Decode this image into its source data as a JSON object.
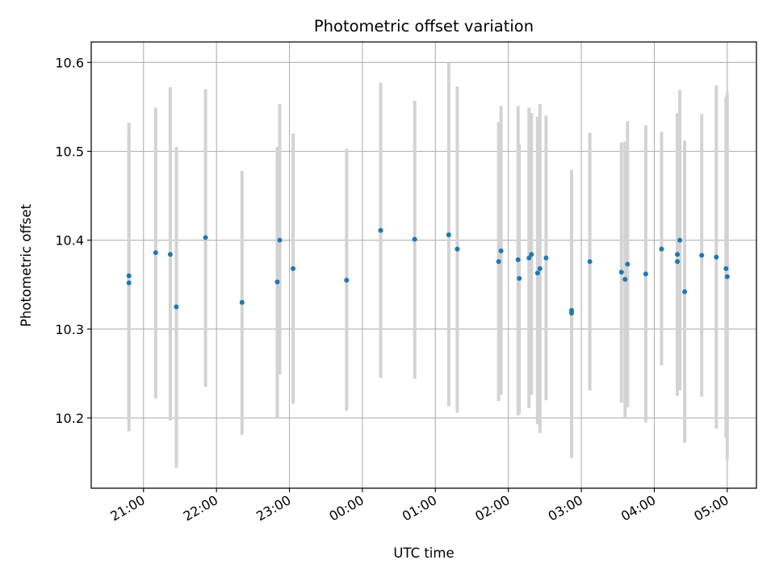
{
  "chart_data": {
    "type": "scatter",
    "title": "Photometric offset variation",
    "xlabel": "UTC time",
    "ylabel": "Photometric offset",
    "grid": true,
    "x_axis_type": "time",
    "xlim": [
      "20:17",
      "29:24"
    ],
    "ylim": [
      10.121,
      10.623
    ],
    "x_ticks": [
      "21:00",
      "22:00",
      "23:00",
      "00:00",
      "01:00",
      "02:00",
      "03:00",
      "04:00",
      "05:00"
    ],
    "y_ticks": [
      "10.2",
      "10.3",
      "10.4",
      "10.5",
      "10.6"
    ],
    "series": [
      {
        "marker_color": "#1f77b4",
        "errorbar_color": "#d3d3d3",
        "points": [
          {
            "t": "20:48",
            "y": 10.36,
            "lo": 10.185,
            "hi": 10.532
          },
          {
            "t": "20:48",
            "y": 10.352,
            "lo": 10.2,
            "hi": 10.52
          },
          {
            "t": "21:10",
            "y": 10.386,
            "lo": 10.222,
            "hi": 10.549
          },
          {
            "t": "21:22",
            "y": 10.384,
            "lo": 10.197,
            "hi": 10.572
          },
          {
            "t": "21:27",
            "y": 10.325,
            "lo": 10.144,
            "hi": 10.505
          },
          {
            "t": "21:51",
            "y": 10.403,
            "lo": 10.235,
            "hi": 10.57
          },
          {
            "t": "22:21",
            "y": 10.33,
            "lo": 10.181,
            "hi": 10.478
          },
          {
            "t": "22:50",
            "y": 10.353,
            "lo": 10.2,
            "hi": 10.505
          },
          {
            "t": "22:52",
            "y": 10.4,
            "lo": 10.249,
            "hi": 10.553
          },
          {
            "t": "23:03",
            "y": 10.368,
            "lo": 10.216,
            "hi": 10.52
          },
          {
            "t": "23:47",
            "y": 10.355,
            "lo": 10.208,
            "hi": 10.503
          },
          {
            "t": "24:15",
            "y": 10.411,
            "lo": 10.245,
            "hi": 10.577
          },
          {
            "t": "24:43",
            "y": 10.401,
            "lo": 10.244,
            "hi": 10.557
          },
          {
            "t": "25:11",
            "y": 10.406,
            "lo": 10.213,
            "hi": 10.6
          },
          {
            "t": "25:18",
            "y": 10.39,
            "lo": 10.206,
            "hi": 10.573
          },
          {
            "t": "25:52",
            "y": 10.376,
            "lo": 10.219,
            "hi": 10.533
          },
          {
            "t": "25:54",
            "y": 10.388,
            "lo": 10.226,
            "hi": 10.551
          },
          {
            "t": "26:08",
            "y": 10.378,
            "lo": 10.203,
            "hi": 10.551
          },
          {
            "t": "26:09",
            "y": 10.357,
            "lo": 10.205,
            "hi": 10.508
          },
          {
            "t": "26:17",
            "y": 10.38,
            "lo": 10.211,
            "hi": 10.549
          },
          {
            "t": "26:19",
            "y": 10.384,
            "lo": 10.226,
            "hi": 10.543
          },
          {
            "t": "26:24",
            "y": 10.363,
            "lo": 10.193,
            "hi": 10.539
          },
          {
            "t": "26:26",
            "y": 10.368,
            "lo": 10.183,
            "hi": 10.553
          },
          {
            "t": "26:31",
            "y": 10.38,
            "lo": 10.22,
            "hi": 10.54
          },
          {
            "t": "26:52",
            "y": 10.321,
            "lo": 10.16,
            "hi": 10.479
          },
          {
            "t": "26:52",
            "y": 10.318,
            "lo": 10.155,
            "hi": 10.479
          },
          {
            "t": "27:07",
            "y": 10.376,
            "lo": 10.231,
            "hi": 10.521
          },
          {
            "t": "27:33",
            "y": 10.364,
            "lo": 10.217,
            "hi": 10.51
          },
          {
            "t": "27:36",
            "y": 10.356,
            "lo": 10.201,
            "hi": 10.511
          },
          {
            "t": "27:38",
            "y": 10.373,
            "lo": 10.212,
            "hi": 10.534
          },
          {
            "t": "27:53",
            "y": 10.362,
            "lo": 10.195,
            "hi": 10.529
          },
          {
            "t": "28:06",
            "y": 10.39,
            "lo": 10.259,
            "hi": 10.522
          },
          {
            "t": "28:19",
            "y": 10.384,
            "lo": 10.225,
            "hi": 10.543
          },
          {
            "t": "28:19",
            "y": 10.376,
            "lo": 10.23,
            "hi": 10.52
          },
          {
            "t": "28:21",
            "y": 10.4,
            "lo": 10.231,
            "hi": 10.569
          },
          {
            "t": "28:25",
            "y": 10.342,
            "lo": 10.172,
            "hi": 10.512
          },
          {
            "t": "28:39",
            "y": 10.383,
            "lo": 10.224,
            "hi": 10.542
          },
          {
            "t": "28:51",
            "y": 10.381,
            "lo": 10.188,
            "hi": 10.574
          },
          {
            "t": "28:59",
            "y": 10.368,
            "lo": 10.178,
            "hi": 10.561
          },
          {
            "t": "29:00",
            "y": 10.359,
            "lo": 10.153,
            "hi": 10.566
          }
        ]
      }
    ]
  }
}
